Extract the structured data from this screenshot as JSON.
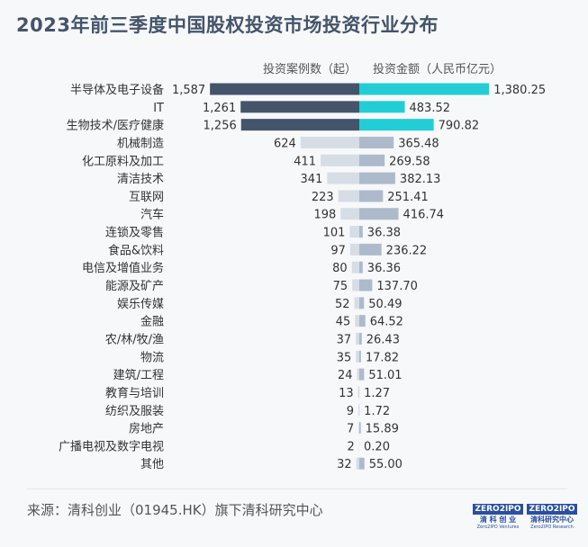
{
  "title": "2023年前三季度中国股权投资市场投资行业分布",
  "source": "来源：清科创业（01945.HK）旗下清科研究中心",
  "logos": [
    {
      "mark": "ZERO2IPO",
      "cn": "清 科 创 业",
      "en": "Zero2IPO Ventures"
    },
    {
      "mark": "ZERO2IPO",
      "cn": "清科研究中心",
      "en": "Zero2IPO Research"
    }
  ],
  "chart_data": {
    "type": "bar",
    "orientation": "horizontal-butterfly",
    "series": [
      {
        "name": "投资案例数（起）",
        "side": "left",
        "values": [
          1587,
          1261,
          1256,
          624,
          411,
          341,
          223,
          198,
          101,
          97,
          80,
          75,
          52,
          45,
          37,
          35,
          24,
          13,
          9,
          7,
          2,
          32
        ],
        "labels": [
          "1,587",
          "1,261",
          "1,256",
          "624",
          "411",
          "341",
          "223",
          "198",
          "101",
          "97",
          "80",
          "75",
          "52",
          "45",
          "37",
          "35",
          "24",
          "13",
          "9",
          "7",
          "2",
          "32"
        ]
      },
      {
        "name": "投资金额（人民币亿元）",
        "side": "right",
        "values": [
          1380.25,
          483.52,
          790.82,
          365.48,
          269.58,
          382.13,
          251.41,
          416.74,
          36.38,
          236.22,
          36.36,
          137.7,
          50.49,
          64.52,
          26.43,
          17.82,
          51.01,
          1.27,
          1.72,
          15.89,
          0.2,
          55.0
        ],
        "labels": [
          "1,380.25",
          "483.52",
          "790.82",
          "365.48",
          "269.58",
          "382.13",
          "251.41",
          "416.74",
          "36.38",
          "236.22",
          "36.36",
          "137.70",
          "50.49",
          "64.52",
          "26.43",
          "17.82",
          "51.01",
          "1.27",
          "1.72",
          "15.89",
          "0.20",
          "55.00"
        ]
      }
    ],
    "categories": [
      "半导体及电子设备",
      "IT",
      "生物技术/医疗健康",
      "机械制造",
      "化工原料及加工",
      "清洁技术",
      "互联网",
      "汽车",
      "连锁及零售",
      "食品&饮料",
      "电信及增值业务",
      "能源及矿产",
      "娱乐传媒",
      "金融",
      "农/林/牧/渔",
      "物流",
      "建筑/工程",
      "教育与培训",
      "纺织及服装",
      "房地产",
      "广播电视及数字电视",
      "其他"
    ],
    "highlight_top": 3,
    "colors": {
      "left_highlight": "#44546a",
      "right_highlight": "#22cdd6",
      "left_other": "#d6dde4",
      "right_other": "#adbacb"
    },
    "grid": false
  }
}
